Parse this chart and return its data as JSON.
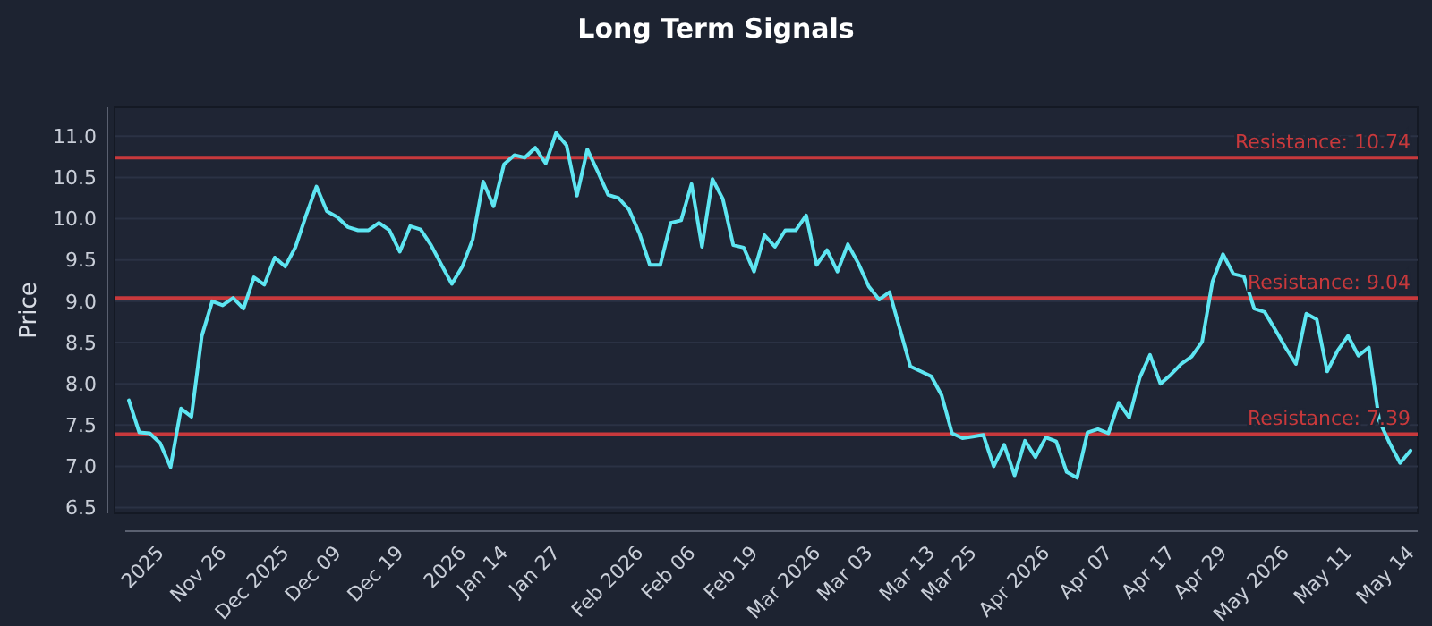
{
  "chart_data": {
    "type": "line",
    "title": "Long Term Signals",
    "ylabel": "Price",
    "categories": [
      null,
      null,
      null,
      "2025",
      null,
      null,
      null,
      null,
      null,
      "Nov 26",
      null,
      null,
      null,
      null,
      null,
      "Dec 2025",
      null,
      null,
      null,
      null,
      "Dec 09",
      null,
      null,
      null,
      null,
      null,
      "Dec 19",
      null,
      null,
      null,
      null,
      null,
      "2026",
      null,
      null,
      null,
      "Jan 14",
      null,
      null,
      null,
      null,
      "Jan 27",
      null,
      null,
      null,
      null,
      null,
      null,
      null,
      "Feb 2026",
      null,
      null,
      null,
      null,
      "Feb 06",
      null,
      null,
      null,
      null,
      null,
      "Feb 19",
      null,
      null,
      null,
      null,
      null,
      "Mar 2026",
      null,
      null,
      null,
      null,
      "Mar 03",
      null,
      null,
      null,
      null,
      null,
      "Mar 13",
      null,
      null,
      null,
      "Mar 25",
      null,
      null,
      null,
      null,
      null,
      null,
      "Apr 2026",
      null,
      null,
      null,
      null,
      null,
      "Apr 07",
      null,
      null,
      null,
      null,
      null,
      "Apr 17",
      null,
      null,
      null,
      null,
      "Apr 29",
      null,
      null,
      null,
      null,
      null,
      "May 2026",
      null,
      null,
      null,
      null,
      null,
      "May 11",
      null,
      null,
      null,
      null,
      null,
      "May 14"
    ],
    "series": [
      {
        "color": "#5ee6f2",
        "values": [
          7.8,
          7.41,
          7.4,
          7.28,
          6.99,
          7.7,
          7.6,
          8.58,
          9.0,
          8.95,
          9.04,
          8.91,
          9.29,
          9.2,
          9.53,
          9.42,
          9.66,
          10.04,
          10.39,
          10.09,
          10.02,
          9.9,
          9.86,
          9.86,
          9.95,
          9.86,
          9.6,
          9.91,
          9.87,
          9.68,
          9.44,
          9.21,
          9.42,
          9.75,
          10.45,
          10.15,
          10.66,
          10.77,
          10.74,
          10.86,
          10.67,
          11.04,
          10.89,
          10.28,
          10.84,
          10.57,
          10.29,
          10.25,
          10.11,
          9.82,
          9.44,
          9.44,
          9.95,
          9.98,
          10.42,
          9.66,
          10.48,
          10.24,
          9.68,
          9.65,
          9.36,
          9.8,
          9.66,
          9.86,
          9.86,
          10.04,
          9.44,
          9.62,
          9.36,
          9.69,
          9.46,
          9.18,
          9.02,
          9.11,
          8.66,
          8.21,
          8.15,
          8.09,
          7.86,
          7.4,
          7.34,
          7.36,
          7.38,
          7.0,
          7.26,
          6.89,
          7.31,
          7.11,
          7.35,
          7.3,
          6.93,
          6.86,
          7.41,
          7.45,
          7.4,
          7.77,
          7.59,
          8.07,
          8.35,
          8.0,
          8.11,
          8.24,
          8.33,
          8.51,
          9.24,
          9.57,
          9.33,
          9.3,
          8.91,
          8.87,
          8.66,
          8.44,
          8.24,
          8.85,
          8.78,
          8.15,
          8.4,
          8.58,
          8.34,
          8.44,
          7.55,
          7.28,
          7.04,
          7.19
        ]
      }
    ],
    "ylim": [
      6.43,
      11.35
    ],
    "yticks": [
      {
        "value": 6.5,
        "label": "6.5"
      },
      {
        "value": 7,
        "label": "7.0"
      },
      {
        "value": 7.5,
        "label": "7.5"
      },
      {
        "value": 8,
        "label": "8.0"
      },
      {
        "value": 8.5,
        "label": "8.5"
      },
      {
        "value": 9,
        "label": "9.0"
      },
      {
        "value": 9.5,
        "label": "9.5"
      },
      {
        "value": 10,
        "label": "10.0"
      },
      {
        "value": 10.5,
        "label": "10.5"
      },
      {
        "value": 11,
        "label": "11.0"
      }
    ],
    "grid": "y",
    "marker": "none",
    "line_style": "solid",
    "ref_lines": [
      {
        "axis": "y",
        "value": 10.74,
        "label": "Resistance: 10.74",
        "color": "#c8393c"
      },
      {
        "axis": "y",
        "value": 9.04,
        "label": "Resistance: 9.04",
        "color": "#c8393c"
      },
      {
        "axis": "y",
        "value": 7.39,
        "label": "Resistance: 7.39",
        "color": "#c8393c"
      }
    ]
  }
}
